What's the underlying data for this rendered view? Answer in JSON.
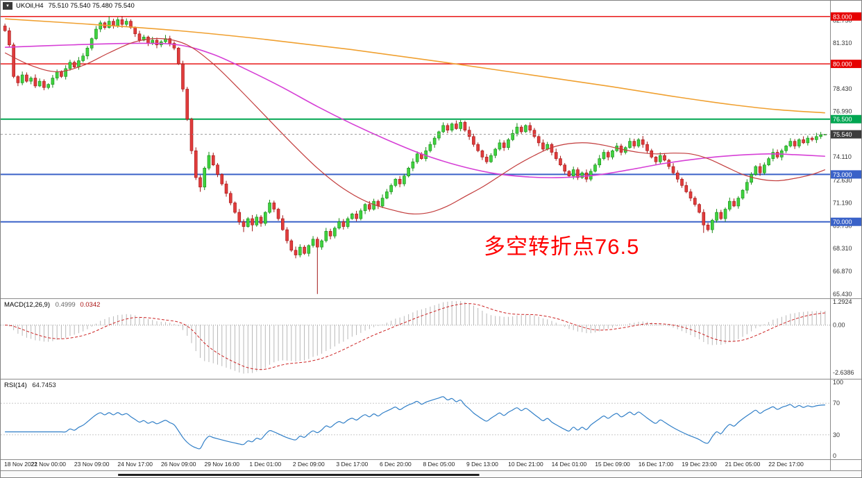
{
  "window": {
    "symbol_header": {
      "symbol": "UKOil,H4",
      "ohlc": "75.510 75.540 75.480 75.540"
    }
  },
  "chart_data": {
    "type": "candlestick",
    "title": "UKOil,H4",
    "symbol": "UKOil",
    "timeframe": "H4",
    "last_candle": {
      "open": "75.510",
      "high": "75.540",
      "low": "75.480",
      "close": "75.540"
    },
    "price_axis": {
      "view_max": 84.0,
      "view_min": 65.2,
      "grid_values": [
        82.75,
        81.31,
        78.43,
        76.99,
        74.11,
        72.63,
        71.19,
        69.75,
        68.31,
        66.87,
        65.43
      ],
      "grid_labels": [
        "82.750",
        "81.310",
        "78.430",
        "76.990",
        "74.110",
        "72.630",
        "71.190",
        "69.750",
        "68.310",
        "66.870",
        "65.430"
      ]
    },
    "hlines": [
      {
        "price": 83.0,
        "label": "83.000",
        "color": "#e60000",
        "width": 1.4
      },
      {
        "price": 80.0,
        "label": "80.000",
        "color": "#e60000",
        "width": 1.4
      },
      {
        "price": 76.5,
        "label": "76.500",
        "color": "#00a651",
        "width": 2
      },
      {
        "price": 73.0,
        "label": "73.000",
        "color": "#3a62c8",
        "width": 2
      },
      {
        "price": 70.0,
        "label": "70.000",
        "color": "#3a62c8",
        "width": 2
      }
    ],
    "current_price": {
      "value": 75.54,
      "label": "75.540",
      "badge_color": "#3c3c3c"
    },
    "candles": {
      "first_open": 82.4,
      "up_color": "#3fd23f",
      "down_color": "#e03c3c",
      "up_border": "#168a16",
      "down_border": "#a31515",
      "closes": [
        82.1,
        81.2,
        79.2,
        78.8,
        79.3,
        78.9,
        79.1,
        78.6,
        78.9,
        78.5,
        78.7,
        79.1,
        79.5,
        79.2,
        79.7,
        80.1,
        79.8,
        80.2,
        80.5,
        81.0,
        81.6,
        82.2,
        82.6,
        82.3,
        82.7,
        82.4,
        82.8,
        82.5,
        82.7,
        82.3,
        81.9,
        81.5,
        81.7,
        81.3,
        81.5,
        81.2,
        81.4,
        81.6,
        81.3,
        81.0,
        80.0,
        78.4,
        76.5,
        74.5,
        72.8,
        72.2,
        73.4,
        74.2,
        73.6,
        73.0,
        72.4,
        71.8,
        71.2,
        70.6,
        70.0,
        69.7,
        70.2,
        69.8,
        70.3,
        69.9,
        70.6,
        71.2,
        70.8,
        70.2,
        69.5,
        68.8,
        68.2,
        67.9,
        68.4,
        68.0,
        68.5,
        68.9,
        68.4,
        68.8,
        69.4,
        69.1,
        69.6,
        70.0,
        69.7,
        70.2,
        70.5,
        70.2,
        70.7,
        71.1,
        70.8,
        71.3,
        71.0,
        71.5,
        71.9,
        72.3,
        72.7,
        72.4,
        72.9,
        73.4,
        73.8,
        74.3,
        74.0,
        74.5,
        74.9,
        75.3,
        75.7,
        76.1,
        75.8,
        76.2,
        75.9,
        76.3,
        75.8,
        75.4,
        74.9,
        74.5,
        74.1,
        73.8,
        74.2,
        74.6,
        75.0,
        74.7,
        75.2,
        75.6,
        76.0,
        75.7,
        76.1,
        75.8,
        75.4,
        75.0,
        74.6,
        74.9,
        74.4,
        74.0,
        73.6,
        73.2,
        72.9,
        73.3,
        72.8,
        73.1,
        72.7,
        73.2,
        73.6,
        74.0,
        74.4,
        74.1,
        74.5,
        74.8,
        74.4,
        74.7,
        75.1,
        74.8,
        75.2,
        74.9,
        74.5,
        74.1,
        73.8,
        74.2,
        73.9,
        73.5,
        73.1,
        72.7,
        72.3,
        71.9,
        71.5,
        71.1,
        70.6,
        69.8,
        69.5,
        70.1,
        70.6,
        70.2,
        70.8,
        71.3,
        71.0,
        71.5,
        72.0,
        72.5,
        73.0,
        73.5,
        73.1,
        73.6,
        74.0,
        74.4,
        74.1,
        74.5,
        74.8,
        75.1,
        74.8,
        75.2,
        75.0,
        75.3,
        75.2,
        75.4,
        75.51,
        75.54
      ],
      "wick_overrides": [
        {
          "i": 0,
          "high": 82.55
        },
        {
          "i": 24,
          "high": 83.0
        },
        {
          "i": 26,
          "high": 82.95
        },
        {
          "i": 45,
          "low": 71.9
        },
        {
          "i": 55,
          "low": 69.35
        },
        {
          "i": 57,
          "low": 69.4
        },
        {
          "i": 72,
          "low": 65.43
        },
        {
          "i": 105,
          "high": 76.45
        },
        {
          "i": 118,
          "high": 76.25
        },
        {
          "i": 161,
          "low": 69.3
        },
        {
          "i": 189,
          "high": 75.54,
          "low": 75.48
        }
      ]
    },
    "ma_lines": [
      {
        "name": "ma-orange-slow",
        "color": "#f0a030",
        "width": 1.6,
        "points": [
          [
            0,
            82.85
          ],
          [
            20,
            82.5
          ],
          [
            40,
            82.1
          ],
          [
            60,
            81.55
          ],
          [
            80,
            80.9
          ],
          [
            100,
            80.15
          ],
          [
            120,
            79.35
          ],
          [
            140,
            78.55
          ],
          [
            155,
            77.9
          ],
          [
            168,
            77.4
          ],
          [
            178,
            77.1
          ],
          [
            189,
            76.9
          ]
        ]
      },
      {
        "name": "ma-magenta-medium",
        "color": "#d63fd6",
        "width": 1.6,
        "points": [
          [
            0,
            81.05
          ],
          [
            15,
            81.2
          ],
          [
            30,
            81.3
          ],
          [
            40,
            81.2
          ],
          [
            48,
            80.6
          ],
          [
            56,
            79.6
          ],
          [
            64,
            78.5
          ],
          [
            72,
            77.3
          ],
          [
            80,
            76.2
          ],
          [
            88,
            75.2
          ],
          [
            96,
            74.3
          ],
          [
            104,
            73.6
          ],
          [
            112,
            73.1
          ],
          [
            120,
            72.85
          ],
          [
            128,
            72.8
          ],
          [
            136,
            72.95
          ],
          [
            144,
            73.3
          ],
          [
            152,
            73.7
          ],
          [
            160,
            74.0
          ],
          [
            168,
            74.2
          ],
          [
            176,
            74.3
          ],
          [
            182,
            74.25
          ],
          [
            189,
            74.15
          ]
        ]
      },
      {
        "name": "ma-red-fast",
        "color": "#c23b3b",
        "width": 1.2,
        "points": [
          [
            0,
            80.7
          ],
          [
            6,
            79.9
          ],
          [
            12,
            79.5
          ],
          [
            18,
            79.9
          ],
          [
            24,
            80.7
          ],
          [
            30,
            81.4
          ],
          [
            36,
            81.6
          ],
          [
            42,
            81.2
          ],
          [
            48,
            80.0
          ],
          [
            54,
            78.4
          ],
          [
            60,
            76.7
          ],
          [
            66,
            75.0
          ],
          [
            72,
            73.4
          ],
          [
            78,
            72.1
          ],
          [
            84,
            71.2
          ],
          [
            90,
            70.7
          ],
          [
            94,
            70.5
          ],
          [
            98,
            70.6
          ],
          [
            102,
            71.0
          ],
          [
            106,
            71.6
          ],
          [
            110,
            72.2
          ],
          [
            114,
            72.9
          ],
          [
            118,
            73.6
          ],
          [
            122,
            74.2
          ],
          [
            126,
            74.7
          ],
          [
            130,
            74.95
          ],
          [
            134,
            75.0
          ],
          [
            138,
            74.85
          ],
          [
            142,
            74.6
          ],
          [
            146,
            74.4
          ],
          [
            150,
            74.3
          ],
          [
            154,
            74.35
          ],
          [
            158,
            74.3
          ],
          [
            162,
            74.0
          ],
          [
            166,
            73.5
          ],
          [
            170,
            73.0
          ],
          [
            174,
            72.7
          ],
          [
            178,
            72.6
          ],
          [
            182,
            72.75
          ],
          [
            186,
            73.0
          ],
          [
            189,
            73.3
          ]
        ]
      }
    ],
    "annotation": {
      "text": "多空转折点76.5",
      "color": "#ff0000"
    },
    "time_axis": {
      "label_every": 10,
      "labels": [
        "18 Nov 2021",
        "22 Nov 00:00",
        "23 Nov 09:00",
        "24 Nov 17:00",
        "26 Nov 09:00",
        "29 Nov 16:00",
        "1 Dec 01:00",
        "2 Dec 09:00",
        "3 Dec 17:00",
        "6 Dec 20:00",
        "8 Dec 05:00",
        "9 Dec 13:00",
        "10 Dec 21:00",
        "14 Dec 01:00",
        "15 Dec 09:00",
        "16 Dec 17:00",
        "19 Dec 23:00",
        "21 Dec 05:00",
        "22 Dec 17:00"
      ]
    },
    "macd": {
      "label": "MACD(12,26,9)",
      "value_main": "0.4999",
      "value_signal": "0.0342",
      "fast": 12,
      "slow": 26,
      "signal_period": 9,
      "scale": {
        "max": 1.45,
        "min": -2.95
      },
      "axis_labels": [
        {
          "text": "1.2924",
          "value": 1.2924
        },
        {
          "text": "0.00",
          "value": 0
        },
        {
          "text": "-2.6386",
          "value": -2.6386
        }
      ],
      "histogram_color": "#b8b8b8",
      "signal_color": "#cc2222"
    },
    "rsi": {
      "label": "RSI(14)",
      "value": "64.7453",
      "period": 14,
      "scale": {
        "max": 100,
        "min": 0
      },
      "axis_labels": [
        {
          "text": "100",
          "value": 100
        },
        {
          "text": "70",
          "value": 70
        },
        {
          "text": "30",
          "value": 30
        },
        {
          "text": "0",
          "value": 0
        }
      ],
      "level_lines": [
        70,
        30
      ],
      "line_color": "#2f7ec7"
    },
    "scrollbar": {
      "x1_frac": 0.137,
      "x2_frac": 0.556
    }
  }
}
